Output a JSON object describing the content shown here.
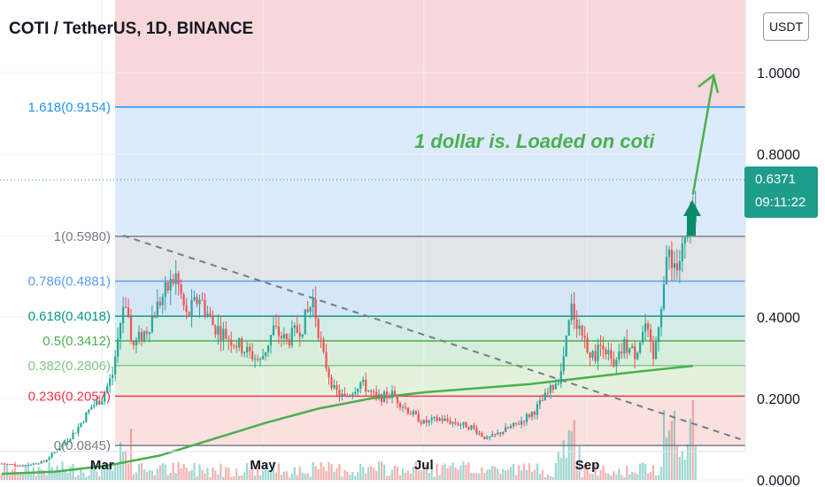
{
  "header": {
    "title": "COTI / TetherUS, 1D, BINANCE",
    "currency_button": "USDT"
  },
  "price_tag": {
    "price": "0.6371",
    "countdown": "09:11:22"
  },
  "chart_data": {
    "type": "candlestick",
    "annotation": "1 dollar is. Loaded on coti",
    "y_axis": {
      "ticks": [
        {
          "label": "1.0000",
          "value": 1.0
        },
        {
          "label": "0.8000",
          "value": 0.8
        },
        {
          "label": "0.4000",
          "value": 0.4
        },
        {
          "label": "0.2000",
          "value": 0.2
        },
        {
          "label": "0.0000",
          "value": 0.0
        }
      ]
    },
    "x_axis": {
      "ticks": [
        "Mar",
        "May",
        "Jul",
        "Sep"
      ]
    },
    "fib_levels": [
      {
        "label": "1.618(0.9154)",
        "ratio": 1.618,
        "price": 0.9154,
        "color": "#2196f3"
      },
      {
        "label": "1(0.5980)",
        "ratio": 1.0,
        "price": 0.598,
        "color": "#787b86"
      },
      {
        "label": "0.786(0.4881)",
        "ratio": 0.786,
        "price": 0.4881,
        "color": "#5b9cf6"
      },
      {
        "label": "0.618(0.4018)",
        "ratio": 0.618,
        "price": 0.4018,
        "color": "#089981"
      },
      {
        "label": "0.5(0.3412)",
        "ratio": 0.5,
        "price": 0.3412,
        "color": "#4caf50"
      },
      {
        "label": "0.382(0.2806)",
        "ratio": 0.382,
        "price": 0.2806,
        "color": "#81c784"
      },
      {
        "label": "0.236(0.2057)",
        "ratio": 0.236,
        "price": 0.2057,
        "color": "#f23645"
      },
      {
        "label": "0(0.0845)",
        "ratio": 0.0,
        "price": 0.0845,
        "color": "#787b86"
      }
    ],
    "fib_zone_fills": [
      "#f8d7da",
      "#dcebfb",
      "#e3e4e8",
      "#d5e6f8",
      "#d3ece6",
      "#d6eedb",
      "#e4f2dd",
      "#fbe0e0"
    ],
    "current_price": 0.6371,
    "price_path": [
      [
        0,
        0.04
      ],
      [
        8,
        0.035
      ],
      [
        16,
        0.045
      ],
      [
        22,
        0.08
      ],
      [
        28,
        0.12
      ],
      [
        34,
        0.18
      ],
      [
        38,
        0.2
      ],
      [
        42,
        0.26
      ],
      [
        46,
        0.43
      ],
      [
        50,
        0.33
      ],
      [
        55,
        0.37
      ],
      [
        60,
        0.44
      ],
      [
        66,
        0.5
      ],
      [
        70,
        0.4
      ],
      [
        75,
        0.45
      ],
      [
        80,
        0.38
      ],
      [
        86,
        0.35
      ],
      [
        92,
        0.32
      ],
      [
        98,
        0.29
      ],
      [
        103,
        0.37
      ],
      [
        108,
        0.34
      ],
      [
        114,
        0.38
      ],
      [
        118,
        0.44
      ],
      [
        122,
        0.3
      ],
      [
        126,
        0.22
      ],
      [
        130,
        0.2
      ],
      [
        136,
        0.24
      ],
      [
        142,
        0.2
      ],
      [
        148,
        0.21
      ],
      [
        154,
        0.17
      ],
      [
        160,
        0.14
      ],
      [
        166,
        0.15
      ],
      [
        172,
        0.14
      ],
      [
        178,
        0.13
      ],
      [
        184,
        0.1
      ],
      [
        190,
        0.12
      ],
      [
        196,
        0.14
      ],
      [
        202,
        0.17
      ],
      [
        208,
        0.22
      ],
      [
        212,
        0.26
      ],
      [
        216,
        0.42
      ],
      [
        220,
        0.36
      ],
      [
        224,
        0.3
      ],
      [
        228,
        0.34
      ],
      [
        232,
        0.27
      ],
      [
        236,
        0.33
      ],
      [
        240,
        0.31
      ],
      [
        244,
        0.38
      ],
      [
        247,
        0.29
      ],
      [
        250,
        0.44
      ],
      [
        253,
        0.56
      ],
      [
        256,
        0.52
      ],
      [
        260,
        0.6
      ],
      [
        263,
        0.64
      ]
    ],
    "moving_average": [
      [
        0,
        0.015
      ],
      [
        20,
        0.02
      ],
      [
        40,
        0.035
      ],
      [
        60,
        0.06
      ],
      [
        80,
        0.1
      ],
      [
        100,
        0.14
      ],
      [
        120,
        0.175
      ],
      [
        140,
        0.2
      ],
      [
        160,
        0.215
      ],
      [
        180,
        0.225
      ],
      [
        200,
        0.235
      ],
      [
        220,
        0.25
      ],
      [
        240,
        0.265
      ],
      [
        262,
        0.28
      ]
    ],
    "trendline": [
      [
        46,
        0.6
      ],
      [
        280,
        0.1
      ]
    ],
    "x_tick_positions": [
      {
        "label": "Mar",
        "day": 38
      },
      {
        "label": "May",
        "day": 99
      },
      {
        "label": "Jul",
        "day": 160
      },
      {
        "label": "Sep",
        "day": 222
      }
    ]
  }
}
